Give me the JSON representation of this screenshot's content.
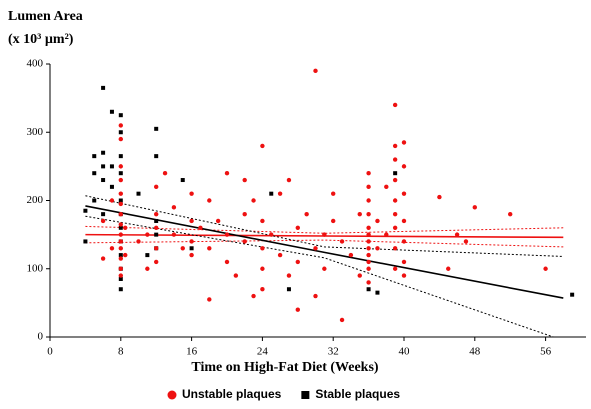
{
  "chart_data": {
    "type": "scatter",
    "title": "Lumen Area",
    "y_label": "(x 10³ µm²)",
    "x_label": "Time on High-Fat Diet (Weeks)",
    "xlim": [
      0,
      60
    ],
    "xticks": [
      0,
      8,
      16,
      24,
      32,
      40,
      48,
      56
    ],
    "ylim": [
      0,
      400
    ],
    "yticks": [
      0,
      100,
      200,
      300,
      400
    ],
    "legend": "bottom",
    "series": [
      {
        "name": "Unstable plaques",
        "color": "#ee1111",
        "marker": "circle",
        "x": [
          8,
          8,
          8,
          8,
          8,
          8,
          8,
          8,
          8,
          8,
          8,
          8,
          8,
          8,
          8.5,
          8.5,
          6,
          6,
          7,
          7,
          10,
          11,
          11,
          12,
          12,
          12,
          12,
          12,
          13,
          14,
          14,
          15,
          16,
          16,
          16,
          16,
          17,
          18,
          18,
          18,
          19,
          20,
          20,
          20,
          21,
          22,
          22,
          22,
          23,
          23,
          24,
          24,
          24,
          24,
          24,
          25,
          26,
          26,
          27,
          27,
          28,
          28,
          28,
          29,
          30,
          30,
          30,
          31,
          31,
          32,
          32,
          33,
          33,
          34,
          35,
          35,
          36,
          36,
          36,
          36,
          36,
          36,
          36,
          36,
          36,
          36,
          36,
          36,
          37,
          37,
          38,
          38,
          39,
          39,
          39,
          39,
          39,
          39,
          39,
          39,
          39,
          40,
          40,
          40,
          40,
          40,
          40,
          40,
          44,
          45,
          46,
          47,
          48,
          52,
          56
        ],
        "values": [
          310,
          290,
          250,
          230,
          210,
          195,
          180,
          165,
          150,
          140,
          130,
          115,
          100,
          90,
          160,
          120,
          115,
          170,
          200,
          130,
          140,
          100,
          150,
          220,
          180,
          160,
          130,
          110,
          240,
          190,
          150,
          130,
          210,
          170,
          140,
          120,
          160,
          200,
          130,
          55,
          170,
          240,
          150,
          110,
          90,
          230,
          180,
          140,
          60,
          200,
          280,
          170,
          130,
          100,
          70,
          150,
          120,
          210,
          230,
          90,
          40,
          160,
          110,
          180,
          390,
          130,
          60,
          150,
          100,
          210,
          170,
          25,
          140,
          120,
          180,
          90,
          240,
          220,
          200,
          180,
          160,
          150,
          140,
          130,
          120,
          110,
          100,
          80,
          170,
          130,
          150,
          220,
          340,
          280,
          260,
          230,
          200,
          180,
          160,
          130,
          100,
          285,
          250,
          210,
          170,
          140,
          110,
          90,
          205,
          100,
          150,
          140,
          190,
          180,
          100
        ]
      },
      {
        "name": "Stable plaques",
        "color": "#000000",
        "marker": "square",
        "x": [
          4,
          4,
          5,
          5,
          5,
          6,
          6,
          6,
          6,
          6,
          7,
          7,
          7,
          8,
          8,
          8,
          8,
          8,
          8,
          8,
          8,
          8,
          8,
          8,
          8,
          10,
          11,
          12,
          12,
          12,
          12,
          12,
          15,
          16,
          25,
          27,
          36,
          37,
          39,
          59
        ],
        "values": [
          140,
          185,
          240,
          265,
          200,
          365,
          270,
          250,
          230,
          180,
          330,
          250,
          220,
          325,
          300,
          265,
          240,
          200,
          180,
          160,
          140,
          120,
          100,
          85,
          70,
          210,
          120,
          305,
          265,
          170,
          150,
          130,
          230,
          130,
          210,
          70,
          70,
          65,
          240,
          62
        ]
      }
    ],
    "fits": [
      {
        "color": "#ee1111",
        "x": [
          4,
          31,
          58
        ],
        "fit": [
          150,
          148,
          146
        ],
        "upper": [
          162,
          152,
          160
        ],
        "lower": [
          138,
          142,
          132
        ]
      },
      {
        "color": "#000000",
        "x": [
          4,
          31,
          58
        ],
        "fit": [
          192,
          124,
          57
        ],
        "upper": [
          207,
          132,
          118
        ],
        "lower": [
          177,
          116,
          -5
        ]
      }
    ]
  }
}
